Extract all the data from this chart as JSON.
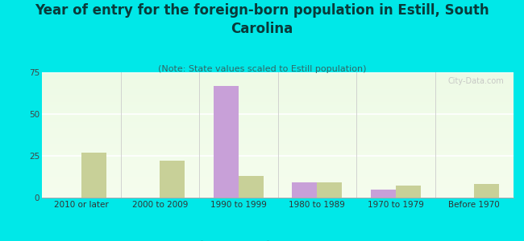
{
  "title": "Year of entry for the foreign-born population in Estill, South\nCarolina",
  "subtitle": "(Note: State values scaled to Estill population)",
  "categories": [
    "2010 or later",
    "2000 to 2009",
    "1990 to 1999",
    "1980 to 1989",
    "1970 to 1979",
    "Before 1970"
  ],
  "estill_values": [
    0,
    0,
    67,
    9,
    5,
    0
  ],
  "sc_values": [
    27,
    22,
    13,
    9,
    7,
    8
  ],
  "estill_color": "#c8a0d8",
  "sc_color": "#c8d098",
  "background_color": "#00e8e8",
  "ylim": [
    0,
    75
  ],
  "yticks": [
    0,
    25,
    50,
    75
  ],
  "bar_width": 0.32,
  "title_fontsize": 12,
  "subtitle_fontsize": 8,
  "tick_fontsize": 7.5,
  "legend_fontsize": 9,
  "watermark": "City-Data.com"
}
